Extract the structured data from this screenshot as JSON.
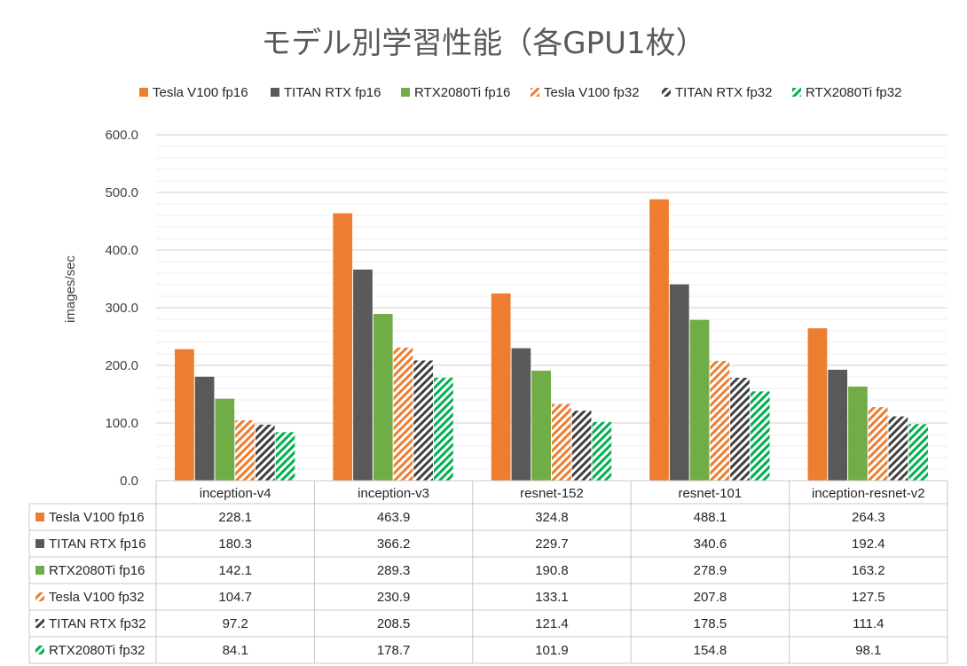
{
  "chart_data": {
    "type": "bar",
    "title": "モデル別学習性能（各GPU1枚）",
    "ylabel": "images/sec",
    "xlabel": "",
    "ylim": [
      0,
      600
    ],
    "y_ticks": [
      "0.0",
      "100.0",
      "200.0",
      "300.0",
      "400.0",
      "500.0",
      "600.0"
    ],
    "grid": true,
    "legend_position": "top",
    "data_table": true,
    "categories": [
      "inception-v4",
      "inception-v3",
      "resnet-152",
      "resnet-101",
      "inception-resnet-v2"
    ],
    "series": [
      {
        "name": "Tesla V100 fp16",
        "color": "#ED7D31",
        "pattern": "solid",
        "values": [
          228.1,
          463.9,
          324.8,
          488.1,
          264.3
        ],
        "labels": [
          "228.1",
          "463.9",
          "324.8",
          "488.1",
          "264.3"
        ]
      },
      {
        "name": "TITAN RTX fp16",
        "color": "#595959",
        "pattern": "solid",
        "values": [
          180.3,
          366.2,
          229.7,
          340.6,
          192.4
        ],
        "labels": [
          "180.3",
          "366.2",
          "229.7",
          "340.6",
          "192.4"
        ]
      },
      {
        "name": "RTX2080Ti fp16",
        "color": "#70AD47",
        "pattern": "solid",
        "values": [
          142.1,
          289.3,
          190.8,
          278.9,
          163.2
        ],
        "labels": [
          "142.1",
          "289.3",
          "190.8",
          "278.9",
          "163.2"
        ]
      },
      {
        "name": "Tesla V100 fp32",
        "color": "#ED7D31",
        "pattern": "hatch",
        "values": [
          104.7,
          230.9,
          133.1,
          207.8,
          127.5
        ],
        "labels": [
          "104.7",
          "230.9",
          "133.1",
          "207.8",
          "127.5"
        ]
      },
      {
        "name": "TITAN RTX fp32",
        "color": "#404040",
        "pattern": "hatch",
        "values": [
          97.2,
          208.5,
          121.4,
          178.5,
          111.4
        ],
        "labels": [
          "97.2",
          "208.5",
          "121.4",
          "178.5",
          "111.4"
        ]
      },
      {
        "name": "RTX2080Ti fp32",
        "color": "#00B050",
        "pattern": "hatch",
        "values": [
          84.1,
          178.7,
          101.9,
          154.8,
          98.1
        ],
        "labels": [
          "84.1",
          "178.7",
          "101.9",
          "154.8",
          "98.1"
        ]
      }
    ]
  }
}
